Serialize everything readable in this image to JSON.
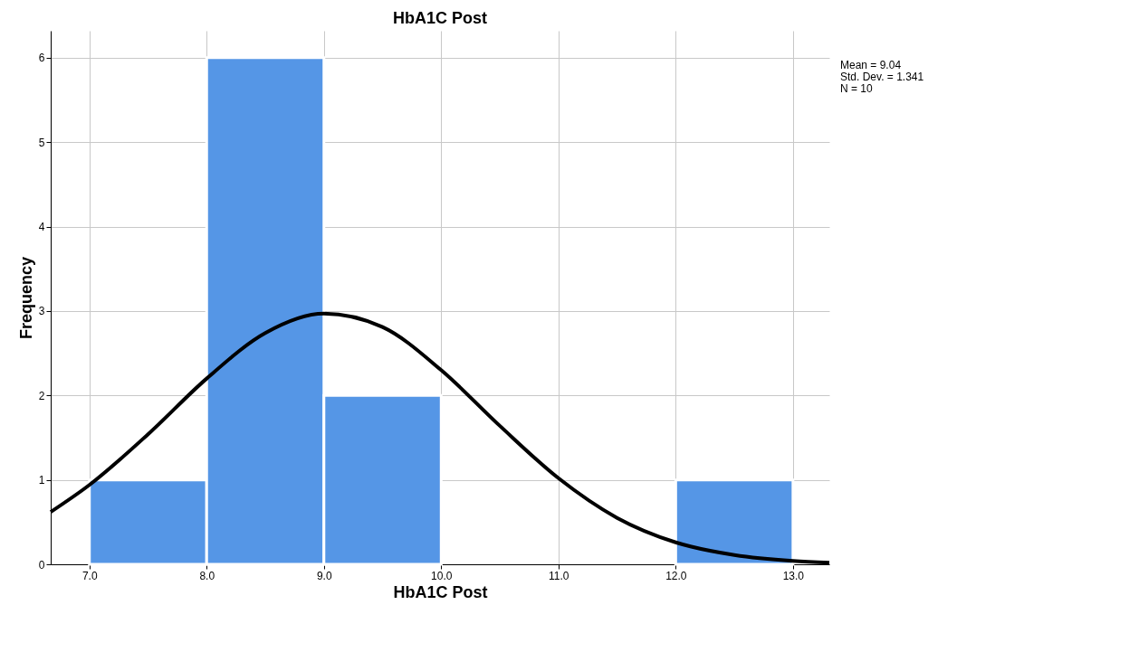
{
  "chart_data": {
    "type": "histogram",
    "title": "HbA1C Post",
    "xlabel": "HbA1C Post",
    "ylabel": "Frequency",
    "bins": [
      7,
      8,
      9,
      10,
      11,
      12,
      13
    ],
    "values": [
      1,
      6,
      2,
      0,
      0,
      1
    ],
    "color": "#5596e6",
    "series": [
      {
        "type": "line",
        "color": "#000000",
        "x": [
          6.67,
          7,
          7.5,
          8,
          8.5,
          9,
          9.5,
          10,
          10.5,
          11,
          11.5,
          12,
          12.5,
          13,
          13.31
        ],
        "values": [
          0.62,
          0.94,
          1.54,
          2.2,
          2.74,
          2.97,
          2.81,
          2.3,
          1.64,
          1.02,
          0.55,
          0.26,
          0.11,
          0.04,
          0.02
        ]
      }
    ],
    "xlim": [
      6.67,
      13.31
    ],
    "ylim": [
      0,
      6.32
    ],
    "xticks": [
      {
        "value": 7,
        "label": "7.0"
      },
      {
        "value": 8,
        "label": "8.0"
      },
      {
        "value": 9,
        "label": "9.0"
      },
      {
        "value": 10,
        "label": "10.0"
      },
      {
        "value": 11,
        "label": "11.0"
      },
      {
        "value": 12,
        "label": "12.0"
      },
      {
        "value": 13,
        "label": "13.0"
      }
    ],
    "yticks": [
      0,
      1,
      2,
      3,
      4,
      5,
      6
    ],
    "grid": true,
    "annotations": [
      "Mean = 9.04",
      "Std. Dev. = 1.341",
      "N = 10"
    ]
  }
}
